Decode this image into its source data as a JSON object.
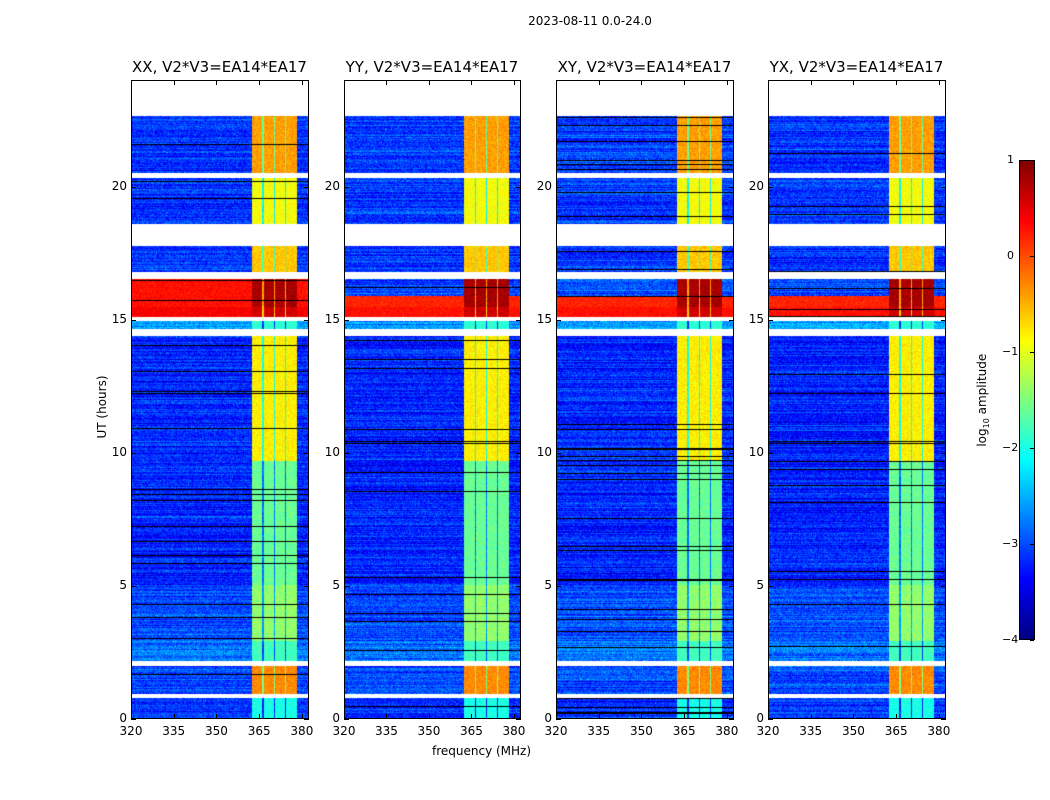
{
  "figure": {
    "suptitle": "2023-08-11 0.0-24.0",
    "xlabel": "frequency (MHz)",
    "ylabel": "UT (hours)"
  },
  "chart_data": {
    "type": "heatmap",
    "title": "2023-08-11 0.0-24.0",
    "xlabel": "frequency (MHz)",
    "ylabel": "UT (hours)",
    "xlim": [
      320,
      382.5
    ],
    "ylim": [
      0,
      24
    ],
    "xticks": [
      "320",
      "335",
      "350",
      "365",
      "380"
    ],
    "yticks": [
      "0",
      "5",
      "10",
      "15",
      "20"
    ],
    "colormap": "jet",
    "colorbar": {
      "label": "log10 amplitude",
      "label_main": "log",
      "label_sub": "10",
      "label_rest": " amplitude",
      "range": [
        -4,
        1
      ],
      "ticks": [
        "1",
        "0",
        "−1",
        "−2",
        "−3",
        "−4"
      ]
    },
    "panels": [
      {
        "title": "XX, V2*V3=EA14*EA17",
        "pol": "XX"
      },
      {
        "title": "YY, V2*V3=EA14*EA17",
        "pol": "YY"
      },
      {
        "title": "XY, V2*V3=EA14*EA17",
        "pol": "XY"
      },
      {
        "title": "YX, V2*V3=EA14*EA17",
        "pol": "YX"
      }
    ],
    "rfi_band_MHz": [
      362.5,
      378.5
    ],
    "rfi_subbands_MHz": [
      [
        362.5,
        366.3
      ],
      [
        366.8,
        370.3
      ],
      [
        370.8,
        374.3
      ],
      [
        374.8,
        378.5
      ]
    ],
    "gaps_hours": [
      [
        22.7,
        24.0
      ],
      [
        20.35,
        20.55
      ],
      [
        17.8,
        18.6
      ],
      [
        16.55,
        16.8
      ],
      [
        14.95,
        15.1
      ],
      [
        0.75,
        0.9
      ],
      [
        1.95,
        2.15
      ]
    ],
    "flagged_black_hours": [
      [
        14.4,
        14.65
      ]
    ],
    "segments": [
      {
        "t": [
          20.55,
          22.7
        ],
        "bg": -3.1,
        "band": -0.4,
        "band_low": -1.3
      },
      {
        "t": [
          18.6,
          20.35
        ],
        "bg": -3.1,
        "band": -0.9
      },
      {
        "t": [
          16.8,
          17.8
        ],
        "bg": -3.1,
        "band": -0.6
      },
      {
        "t": [
          15.5,
          16.55
        ],
        "bg": -3.0,
        "band": 0.8,
        "xx_bg": 0.3
      },
      {
        "t": [
          15.1,
          15.5
        ],
        "bg": -1.0,
        "band": 0.6,
        "xx_bg": 0.4
      },
      {
        "t": [
          14.65,
          14.95
        ],
        "bg": -2.6,
        "band": -1.9
      },
      {
        "t": [
          9.7,
          14.4
        ],
        "bg": -3.2,
        "band": -0.8
      },
      {
        "t": [
          5.0,
          9.7
        ],
        "bg": -3.2,
        "band": -1.6
      },
      {
        "t": [
          2.9,
          5.0
        ],
        "bg": -3.0,
        "band": -1.4
      },
      {
        "t": [
          2.15,
          2.9
        ],
        "bg": -2.8,
        "band": -1.8
      },
      {
        "t": [
          0.9,
          1.95
        ],
        "bg": -3.0,
        "band": -0.3
      },
      {
        "t": [
          0.0,
          0.75
        ],
        "bg": -3.1,
        "band": -2.0
      }
    ]
  }
}
